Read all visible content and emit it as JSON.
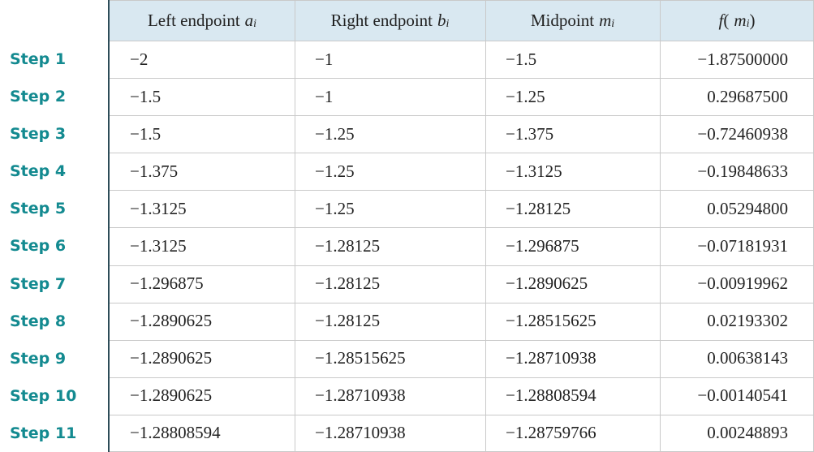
{
  "table": {
    "columns": [
      [
        {
          "text": "Left endpoint",
          "style": "roman"
        },
        {
          "text": "a",
          "style": "italic"
        },
        {
          "text": "i",
          "style": "sub"
        }
      ],
      [
        {
          "text": "Right endpoint",
          "style": "roman"
        },
        {
          "text": "b",
          "style": "italic"
        },
        {
          "text": "i",
          "style": "sub"
        }
      ],
      [
        {
          "text": "Midpoint",
          "style": "roman"
        },
        {
          "text": "m",
          "style": "italic"
        },
        {
          "text": "i",
          "style": "sub"
        }
      ],
      [
        {
          "text": "f",
          "style": "italic"
        },
        {
          "text": "(",
          "style": "roman"
        },
        {
          "text": "m",
          "style": "italic"
        },
        {
          "text": "i",
          "style": "sub"
        },
        {
          "text": ")",
          "style": "roman"
        }
      ]
    ],
    "rows": [
      {
        "label": "Step 1",
        "cells": [
          "−2",
          "−1",
          "−1.5",
          "−1.87500000"
        ]
      },
      {
        "label": "Step 2",
        "cells": [
          "−1.5",
          "−1",
          "−1.25",
          "0.29687500"
        ]
      },
      {
        "label": "Step 3",
        "cells": [
          "−1.5",
          "−1.25",
          "−1.375",
          "−0.72460938"
        ]
      },
      {
        "label": "Step 4",
        "cells": [
          "−1.375",
          "−1.25",
          "−1.3125",
          "−0.19848633"
        ]
      },
      {
        "label": "Step 5",
        "cells": [
          "−1.3125",
          "−1.25",
          "−1.28125",
          "0.05294800"
        ]
      },
      {
        "label": "Step 6",
        "cells": [
          "−1.3125",
          "−1.28125",
          "−1.296875",
          "−0.07181931"
        ]
      },
      {
        "label": "Step 7",
        "cells": [
          "−1.296875",
          "−1.28125",
          "−1.2890625",
          "−0.00919962"
        ]
      },
      {
        "label": "Step 8",
        "cells": [
          "−1.2890625",
          "−1.28125",
          "−1.28515625",
          "0.02193302"
        ]
      },
      {
        "label": "Step 9",
        "cells": [
          "−1.2890625",
          "−1.28515625",
          "−1.28710938",
          "0.00638143"
        ]
      },
      {
        "label": "Step 10",
        "cells": [
          "−1.2890625",
          "−1.28710938",
          "−1.28808594",
          "−0.00140541"
        ]
      },
      {
        "label": "Step 11",
        "cells": [
          "−1.28808594",
          "−1.28710938",
          "−1.28759766",
          "0.00248893"
        ]
      }
    ]
  }
}
